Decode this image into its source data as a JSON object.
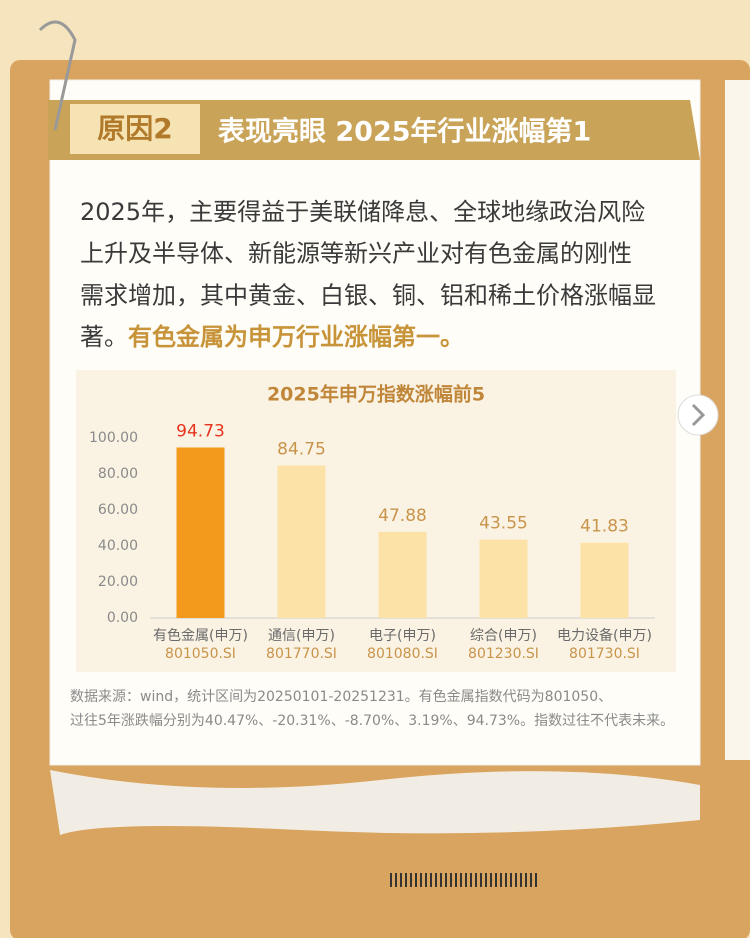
{
  "header": {
    "tag": "原因2",
    "title": "表现亮眼 2025年行业涨幅第1"
  },
  "body": {
    "lines": [
      "2025年，主要得益于美联储降息、全球地缘政治风险",
      "上升及半导体、新能源等新兴产业对有色金属的刚性",
      "需求增加，其中黄金、白银、铜、铝和稀土价格涨幅显",
      "著。"
    ],
    "highlight": "有色金属为申万行业涨幅第一。"
  },
  "chart_data": {
    "type": "bar",
    "title": "2025年申万指数涨幅前5",
    "categories": [
      "有色金属(申万)",
      "通信(申万)",
      "电子(申万)",
      "综合(申万)",
      "电力设备(申万)"
    ],
    "codes": [
      "801050.SI",
      "801770.SI",
      "801080.SI",
      "801230.SI",
      "801730.SI"
    ],
    "values": [
      94.73,
      84.75,
      47.88,
      43.55,
      41.83
    ],
    "colors": [
      "#f39a1c",
      "#fde2a8",
      "#fde2a8",
      "#fde2a8",
      "#fde2a8"
    ],
    "label_colors": [
      "#e8321e",
      "#c8944a",
      "#c8944a",
      "#c8944a",
      "#c8944a"
    ],
    "ylim": [
      0,
      100
    ],
    "yticks": [
      {
        "value": 0,
        "label": "0.00"
      },
      {
        "value": 20,
        "label": "20.00"
      },
      {
        "value": 40,
        "label": "40.00"
      },
      {
        "value": 60,
        "label": "60.00"
      },
      {
        "value": 80,
        "label": "80.00"
      },
      {
        "value": 100,
        "label": "100.00"
      }
    ]
  },
  "footnote": [
    "数据来源：wind，统计区间为20250101-20251231。有色金属指数代码为801050、",
    "过往5年涨跌幅分别为40.47%、-20.31%、-8.70%、3.19%、94.73%。指数过往不代表未来。"
  ]
}
